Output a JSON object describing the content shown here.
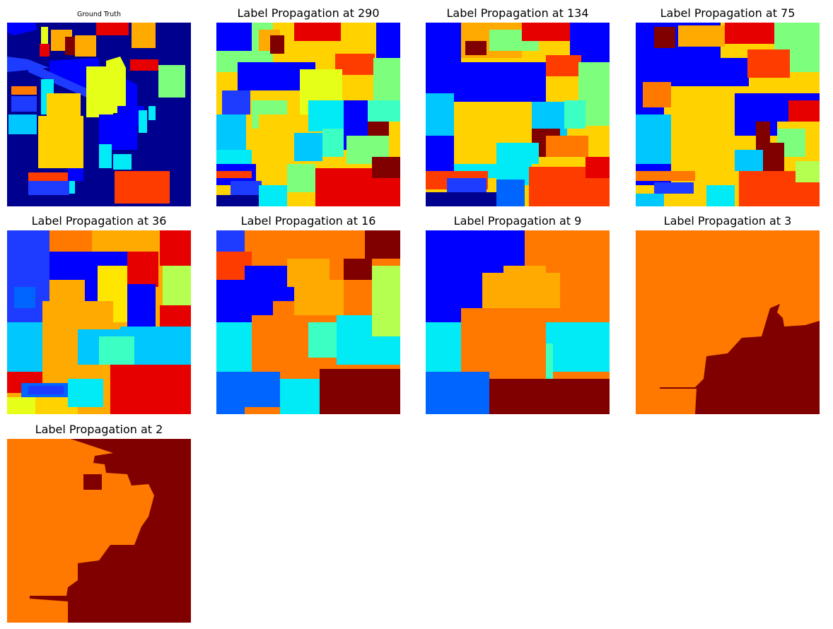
{
  "colors": {
    "navy": "#00008f",
    "blue": "#0000ff",
    "blue2": "#1e3cff",
    "azure": "#0064ff",
    "sky": "#00c8ff",
    "cyan": "#00ebf5",
    "aqua": "#3cffc3",
    "mint": "#7dff7d",
    "lime": "#b4ff50",
    "yellow": "#e6ff19",
    "gold": "#ffd200",
    "amber": "#ffaa00",
    "orange": "#ff7800",
    "redorange": "#ff3c00",
    "red": "#e60000",
    "maroon": "#800000"
  },
  "panels": [
    {
      "id": "ground-truth",
      "title": "Ground Truth",
      "small": true
    },
    {
      "id": "lp-290",
      "title": "Label Propagation at 290"
    },
    {
      "id": "lp-134",
      "title": "Label Propagation at 134"
    },
    {
      "id": "lp-75",
      "title": "Label Propagation at 75"
    },
    {
      "id": "lp-36",
      "title": "Label Propagation at 36"
    },
    {
      "id": "lp-16",
      "title": "Label Propagation at 16"
    },
    {
      "id": "lp-9",
      "title": "Label Propagation at 9"
    },
    {
      "id": "lp-3",
      "title": "Label Propagation at 3"
    },
    {
      "id": "lp-2",
      "title": "Label Propagation at 2"
    }
  ]
}
